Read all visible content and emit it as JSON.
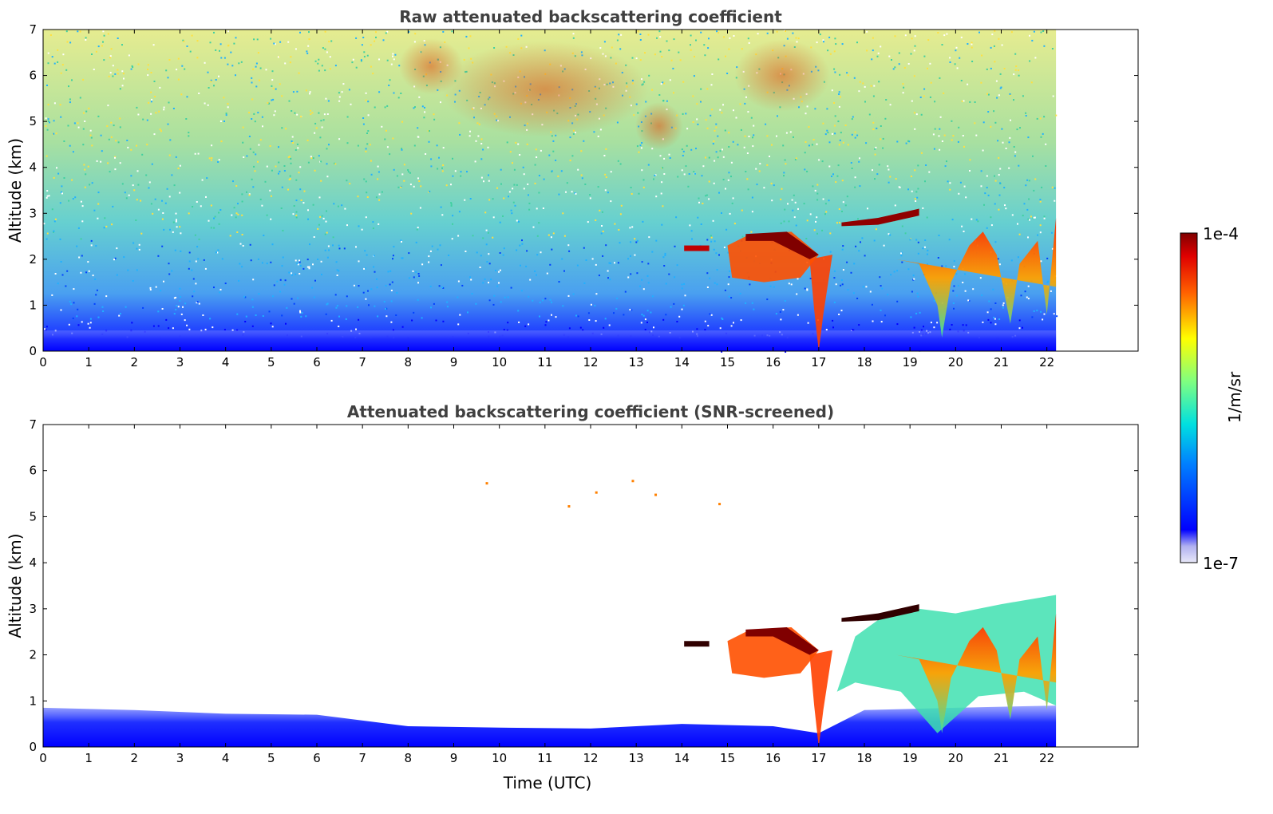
{
  "chart_data": [
    {
      "type": "heatmap",
      "title": "Raw attenuated backscattering coefficient",
      "xlabel": "",
      "ylabel": "Altitude (km)",
      "xlim": [
        0,
        24
      ],
      "ylim": [
        0,
        7
      ],
      "xticks": [
        "0",
        "1",
        "2",
        "3",
        "4",
        "5",
        "6",
        "7",
        "8",
        "9",
        "10",
        "11",
        "12",
        "13",
        "14",
        "15",
        "16",
        "17",
        "18",
        "19",
        "20",
        "21",
        "22"
      ],
      "yticks": [
        "0",
        "1",
        "2",
        "3",
        "4",
        "5",
        "6",
        "7"
      ],
      "data_extent_x": [
        0,
        22.2
      ],
      "screened": false,
      "features": [
        {
          "kind": "cloud-layer",
          "t_start": 14.0,
          "t_end": 14.6,
          "alt_km": 2.25
        },
        {
          "kind": "cloud-layer",
          "t_start": 15.0,
          "t_end": 17.4,
          "alt_km": 2.3
        },
        {
          "kind": "cloud-layer",
          "t_start": 17.4,
          "t_end": 19.2,
          "alt_km": 2.9
        },
        {
          "kind": "boundary-layer",
          "t_start": 17.0,
          "t_end": 22.2,
          "alt_km": 1.5
        }
      ]
    },
    {
      "type": "heatmap",
      "title": "Attenuated backscattering coefficient (SNR-screened)",
      "xlabel": "Time (UTC)",
      "ylabel": "Altitude (km)",
      "xlim": [
        0,
        24
      ],
      "ylim": [
        0,
        7
      ],
      "xticks": [
        "0",
        "1",
        "2",
        "3",
        "4",
        "5",
        "6",
        "7",
        "8",
        "9",
        "10",
        "11",
        "12",
        "13",
        "14",
        "15",
        "16",
        "17",
        "18",
        "19",
        "20",
        "21",
        "22"
      ],
      "yticks": [
        "0",
        "1",
        "2",
        "3",
        "4",
        "5",
        "6",
        "7"
      ],
      "data_extent_x": [
        0,
        22.2
      ],
      "screened": true
    }
  ],
  "colorbar": {
    "max_label": "1e-4",
    "min_label": "1e-7",
    "unit_label": "1/m/sr",
    "colormap": "jet"
  }
}
